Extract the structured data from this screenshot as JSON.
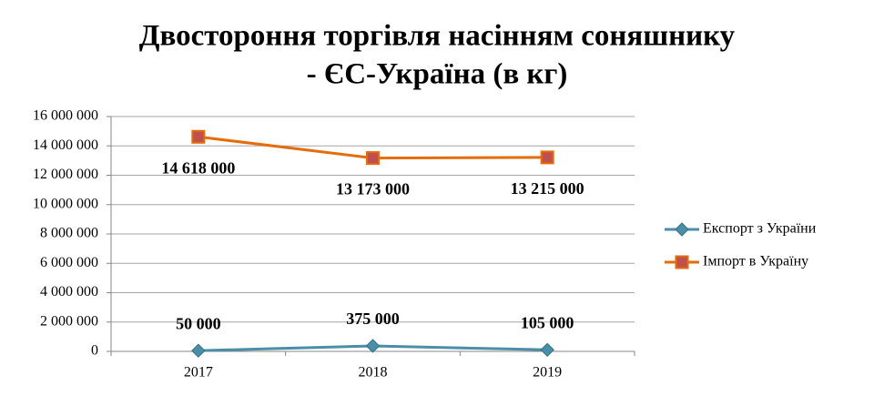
{
  "chart_data": {
    "type": "line",
    "title": [
      "Двостороння торгівля насінням соняшнику",
      "- ЄС-Україна (в кг)"
    ],
    "categories": [
      "2017",
      "2018",
      "2019"
    ],
    "series": [
      {
        "name": "Експорт з України",
        "color": "#4a8ea8",
        "marker": "diamond",
        "label_position": "above",
        "values": [
          50000,
          375000,
          105000
        ],
        "value_labels": [
          "50 000",
          "375 000",
          "105 000"
        ]
      },
      {
        "name": "Імпорт в Україну",
        "color": "#e46c0a",
        "marker_fill": "#c0504d",
        "marker": "square",
        "label_position": "below",
        "values": [
          14618000,
          13173000,
          13215000
        ],
        "value_labels": [
          "14 618 000",
          "13 173 000",
          "13 215 000"
        ]
      }
    ],
    "ylim": [
      0,
      16000000
    ],
    "yticks": [
      0,
      {
        "value": 2000000,
        "label": "2 000 000"
      },
      {
        "value": 4000000,
        "label": "4 000 000"
      },
      {
        "value": 6000000,
        "label": "6 000 000"
      },
      {
        "value": 8000000,
        "label": "8 000 000"
      },
      {
        "value": 10000000,
        "label": "10 000 000"
      },
      {
        "value": 12000000,
        "label": "12 000 000"
      },
      {
        "value": 14000000,
        "label": "14 000 000"
      },
      {
        "value": 16000000,
        "label": "16 000 000"
      }
    ],
    "grid": true,
    "legend": "right"
  }
}
